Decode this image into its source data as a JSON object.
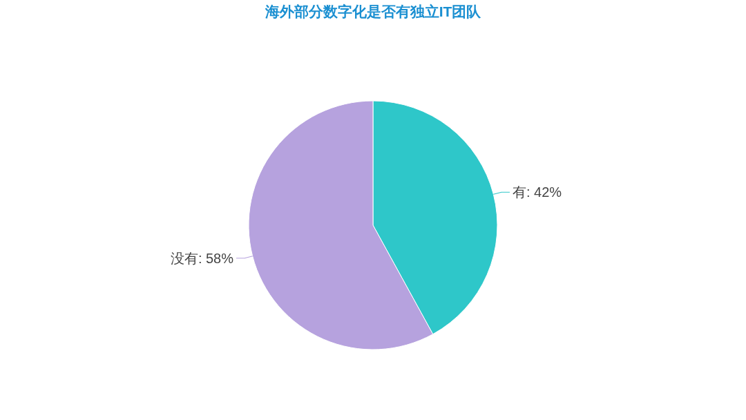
{
  "chart_data": {
    "type": "pie",
    "title": "海外部分数字化是否有独立IT团队",
    "categories": [
      "有",
      "没有"
    ],
    "values": [
      42,
      58
    ],
    "value_labels": [
      "42%",
      "58%"
    ],
    "colors": [
      "#2ec7c9",
      "#b6a2de"
    ]
  }
}
